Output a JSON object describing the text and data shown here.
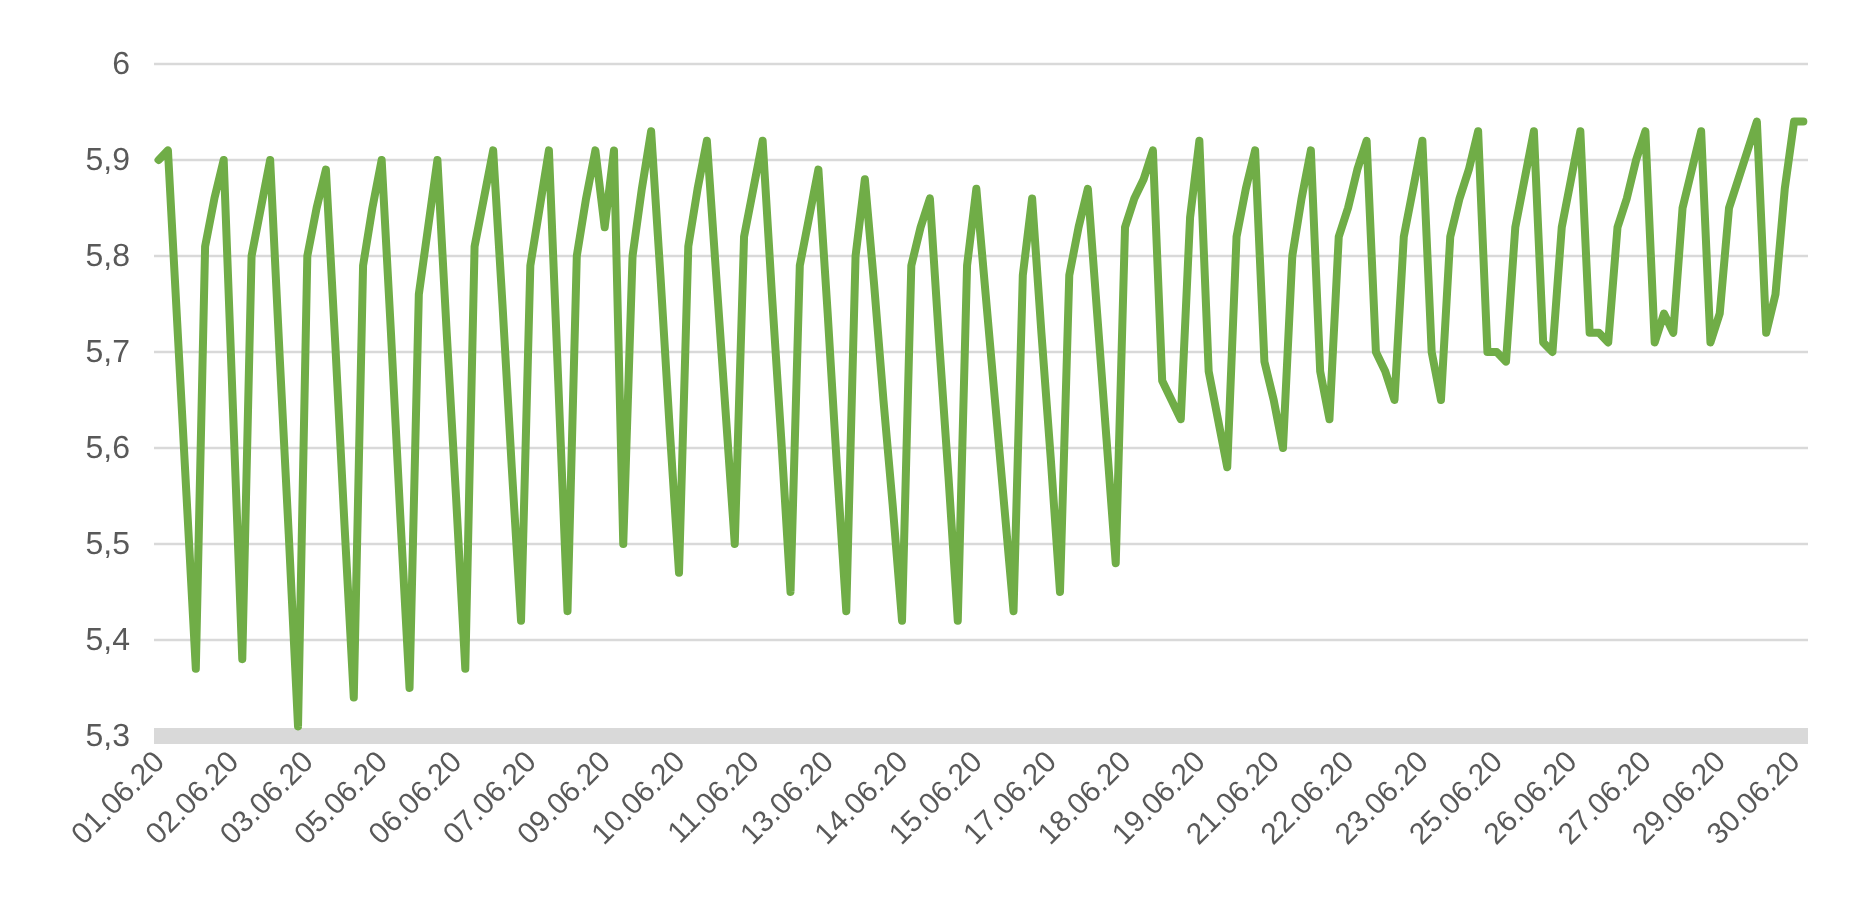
{
  "chart_data": {
    "type": "line",
    "grid": "y",
    "marker": "none",
    "line_style": "solid",
    "categories": [
      "01.06.20",
      null,
      null,
      null,
      null,
      null,
      null,
      null,
      "02.06.20",
      null,
      null,
      null,
      null,
      null,
      null,
      null,
      "03.06.20",
      null,
      null,
      null,
      null,
      null,
      null,
      null,
      "05.06.20",
      null,
      null,
      null,
      null,
      null,
      null,
      null,
      "06.06.20",
      null,
      null,
      null,
      null,
      null,
      null,
      null,
      "07.06.20",
      null,
      null,
      null,
      null,
      null,
      null,
      null,
      "09.06.20",
      null,
      null,
      null,
      null,
      null,
      null,
      null,
      "10.06.20",
      null,
      null,
      null,
      null,
      null,
      null,
      null,
      "11.06.20",
      null,
      null,
      null,
      null,
      null,
      null,
      null,
      "13.06.20",
      null,
      null,
      null,
      null,
      null,
      null,
      null,
      "14.06.20",
      null,
      null,
      null,
      null,
      null,
      null,
      null,
      "15.06.20",
      null,
      null,
      null,
      null,
      null,
      null,
      null,
      "17.06.20",
      null,
      null,
      null,
      null,
      null,
      null,
      null,
      "18.06.20",
      null,
      null,
      null,
      null,
      null,
      null,
      null,
      "19.06.20",
      null,
      null,
      null,
      null,
      null,
      null,
      null,
      "21.06.20",
      null,
      null,
      null,
      null,
      null,
      null,
      null,
      "22.06.20",
      null,
      null,
      null,
      null,
      null,
      null,
      null,
      "23.06.20",
      null,
      null,
      null,
      null,
      null,
      null,
      null,
      "25.06.20",
      null,
      null,
      null,
      null,
      null,
      null,
      null,
      "26.06.20",
      null,
      null,
      null,
      null,
      null,
      null,
      null,
      "27.06.20",
      null,
      null,
      null,
      null,
      null,
      null,
      null,
      "29.06.20",
      null,
      null,
      null,
      null,
      null,
      null,
      null,
      "30.06.20",
      null
    ],
    "ylim": [
      5.3,
      6
    ],
    "yticks": [
      {
        "value": 5.3,
        "label": "5,3"
      },
      {
        "value": 5.4,
        "label": "5,4"
      },
      {
        "value": 5.5,
        "label": "5,5"
      },
      {
        "value": 5.6,
        "label": "5,6"
      },
      {
        "value": 5.7,
        "label": "5,7"
      },
      {
        "value": 5.8,
        "label": "5,8"
      },
      {
        "value": 5.9,
        "label": "5,9"
      },
      6
    ],
    "series": [
      {
        "color": "#70ad47",
        "values": [
          5.9,
          5.91,
          5.73,
          5.55,
          5.37,
          5.81,
          5.86,
          5.9,
          5.64,
          5.38,
          5.8,
          5.85,
          5.9,
          5.7,
          5.51,
          5.31,
          5.8,
          5.85,
          5.89,
          5.71,
          5.52,
          5.34,
          5.79,
          5.85,
          5.9,
          5.72,
          5.53,
          5.35,
          5.76,
          5.83,
          5.9,
          5.72,
          5.55,
          5.37,
          5.81,
          5.86,
          5.91,
          5.75,
          5.58,
          5.42,
          5.79,
          5.85,
          5.91,
          5.67,
          5.43,
          5.8,
          5.86,
          5.91,
          5.83,
          5.91,
          5.5,
          5.8,
          5.87,
          5.93,
          5.78,
          5.62,
          5.47,
          5.81,
          5.87,
          5.92,
          5.78,
          5.64,
          5.5,
          5.82,
          5.87,
          5.92,
          5.76,
          5.61,
          5.45,
          5.79,
          5.84,
          5.89,
          5.74,
          5.58,
          5.43,
          5.8,
          5.88,
          5.77,
          5.65,
          5.54,
          5.42,
          5.79,
          5.83,
          5.86,
          5.71,
          5.57,
          5.42,
          5.79,
          5.87,
          5.76,
          5.65,
          5.54,
          5.43,
          5.78,
          5.86,
          5.72,
          5.59,
          5.45,
          5.78,
          5.83,
          5.87,
          5.74,
          5.61,
          5.48,
          5.83,
          5.86,
          5.88,
          5.91,
          5.67,
          5.65,
          5.63,
          5.84,
          5.92,
          5.68,
          5.63,
          5.58,
          5.82,
          5.87,
          5.91,
          5.69,
          5.65,
          5.6,
          5.8,
          5.86,
          5.91,
          5.68,
          5.63,
          5.82,
          5.85,
          5.89,
          5.92,
          5.7,
          5.68,
          5.65,
          5.82,
          5.87,
          5.92,
          5.7,
          5.65,
          5.82,
          5.86,
          5.89,
          5.93,
          5.7,
          5.7,
          5.69,
          5.83,
          5.88,
          5.93,
          5.71,
          5.7,
          5.83,
          5.88,
          5.93,
          5.72,
          5.72,
          5.71,
          5.83,
          5.86,
          5.9,
          5.93,
          5.71,
          5.74,
          5.72,
          5.85,
          5.89,
          5.93,
          5.71,
          5.74,
          5.85,
          5.88,
          5.91,
          5.94,
          5.72,
          5.76,
          5.87,
          5.94,
          5.94
        ]
      }
    ]
  }
}
